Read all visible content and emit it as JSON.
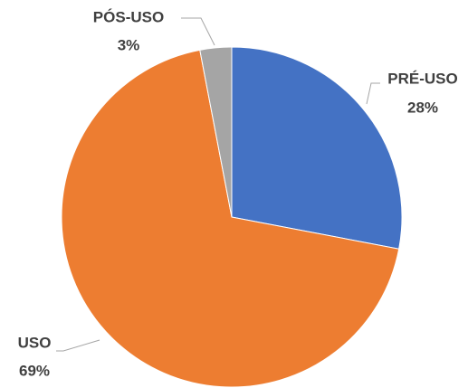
{
  "chart_data": {
    "type": "pie",
    "categories": [
      "PRÉ-USO",
      "USO",
      "PÓS-USO"
    ],
    "values": [
      28,
      69,
      3
    ],
    "value_labels": [
      "28%",
      "69%",
      "3%"
    ],
    "colors": [
      "#4472c4",
      "#ed7d31",
      "#a5a5a5"
    ]
  }
}
